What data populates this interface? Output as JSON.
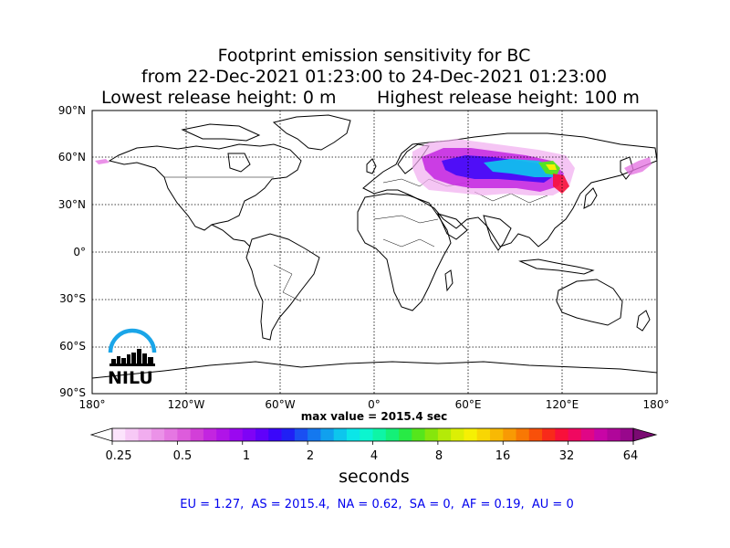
{
  "title": {
    "line1": "Footprint emission sensitivity for BC",
    "line2": "from 22-Dec-2021 01:23:00 to 24-Dec-2021 01:23:00",
    "line3_left": "Lowest release height: 0 m",
    "line3_right": "Highest release height: 100 m"
  },
  "map": {
    "projection": "equirectangular",
    "lat_labels": [
      "90°N",
      "60°N",
      "30°N",
      "0°",
      "30°S",
      "60°S",
      "90°S"
    ],
    "lon_labels": [
      "180°",
      "120°W",
      "60°W",
      "0°",
      "60°E",
      "120°E",
      "180°"
    ],
    "gridlines": "dotted"
  },
  "max_value_text": "max value = 2015.4 sec",
  "colorbar": {
    "tick_labels": [
      "0.25",
      "0.5",
      "1",
      "2",
      "4",
      "8",
      "16",
      "32",
      "64"
    ],
    "unit_label": "seconds",
    "colors": [
      "#fce4fc",
      "#f7c9f6",
      "#f1adef",
      "#eb92e8",
      "#e577e2",
      "#dd5cdc",
      "#d23fd8",
      "#c325e0",
      "#b014e8",
      "#9a08f0",
      "#7f03f6",
      "#6001fa",
      "#3a06fa",
      "#2020f5",
      "#1a4ff2",
      "#1478ef",
      "#10a0ee",
      "#0dc6ed",
      "#0be6e8",
      "#0cf5cf",
      "#0ef5a6",
      "#14f078",
      "#28ea45",
      "#55e61c",
      "#86e60c",
      "#b4ea08",
      "#dcef05",
      "#f6f004",
      "#f8d604",
      "#f8b904",
      "#f89a04",
      "#f87804",
      "#f8500a",
      "#f82a1a",
      "#f8103a",
      "#f00860",
      "#e00686",
      "#c805a6",
      "#b0069a",
      "#98088c"
    ],
    "extend_under_color": "#ffffff",
    "extend_over_color": "#7a0a72"
  },
  "regional_totals": "EU = 1.27,  AS = 2015.4,  NA = 0.62,  SA = 0,  AF = 0.19,  AU = 0",
  "logo": {
    "text": "NILU",
    "arc_color": "#1aa5e8"
  }
}
